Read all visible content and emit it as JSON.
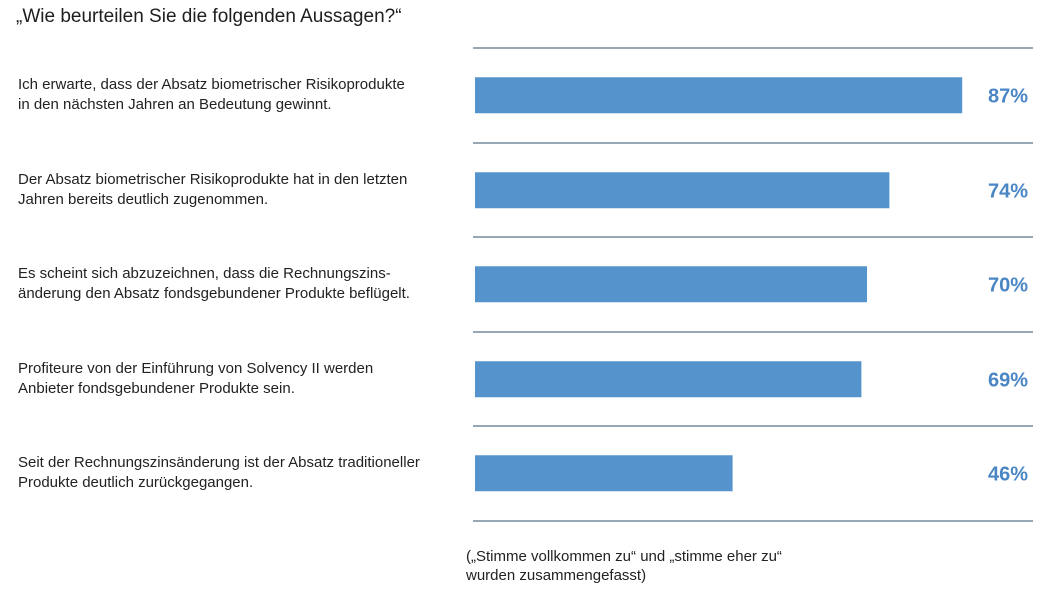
{
  "title": "„Wie beurteilen Sie die folgenden Aussagen?“",
  "note": "(„Stimme vollkommen zu“ und „stimme eher zu“\nwurden zusammengefasst)",
  "colors": {
    "bar": "#5593cc",
    "value_text": "#4a86c4",
    "divider": "#2c4f6e"
  },
  "chart_data": {
    "type": "bar",
    "orientation": "horizontal",
    "unit": "%",
    "xlim": [
      0,
      100
    ],
    "grid": false,
    "categories": [
      "Ich erwarte, dass der Absatz biometrischer Risikoprodukte in den nächsten Jahren an Bedeutung gewinnt.",
      "Der Absatz biometrischer Risikoprodukte hat in den letzten Jahren bereits deutlich zugenommen.",
      "Es scheint sich abzuzeichnen, dass die Rechnungszins-änderung den Absatz fondsgebundener Produkte beflügelt.",
      "Profiteure von der Einführung von Solvency II werden Anbieter fondsgebundener Produkte sein.",
      "Seit der Rechnungszinsänderung ist der Absatz traditioneller Produkte deutlich zurückgegangen."
    ],
    "category_lines": [
      [
        "Ich erwarte, dass der Absatz biometrischer Risikoprodukte",
        "in den nächsten Jahren an Bedeutung gewinnt."
      ],
      [
        "Der Absatz biometrischer Risikoprodukte hat in den letzten",
        "Jahren bereits deutlich zugenommen."
      ],
      [
        "Es scheint sich abzuzeichnen, dass die Rechnungszins-",
        "änderung den Absatz fondsgebundener Produkte beflügelt."
      ],
      [
        "Profiteure von der Einführung von Solvency II werden",
        "Anbieter fondsgebundener Produkte sein."
      ],
      [
        "Seit der Rechnungszinsänderung ist der Absatz traditioneller",
        "Produkte deutlich zurückgegangen."
      ]
    ],
    "values": [
      87,
      74,
      70,
      69,
      46
    ],
    "labels": [
      "87%",
      "74%",
      "70%",
      "69%",
      "46%"
    ]
  }
}
